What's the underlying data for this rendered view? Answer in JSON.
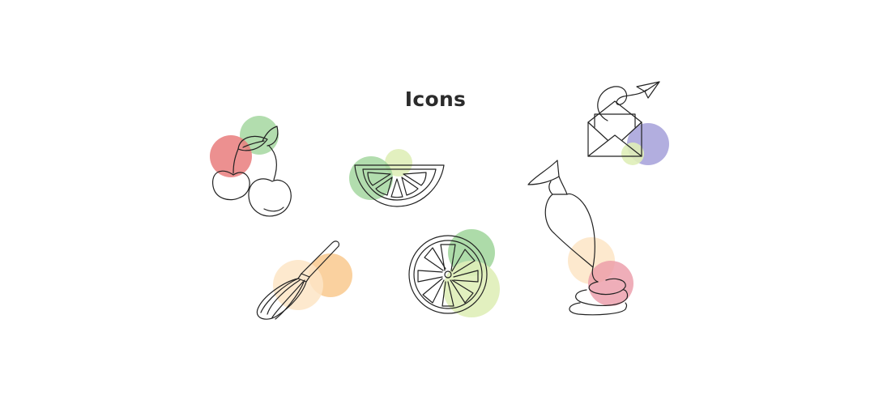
{
  "title": "Icons",
  "colors": {
    "line": "#222222",
    "red": "#e97d7d",
    "green": "#9fd59a",
    "light_green": "#dfeeb8",
    "orange": "#f9c98e",
    "peach": "#fde5c6",
    "purple": "#aaa5dc",
    "pink": "#eb9aa8"
  },
  "icons": [
    {
      "name": "cherries",
      "accents": [
        "red",
        "green"
      ]
    },
    {
      "name": "lime-slice",
      "accents": [
        "green",
        "light_green"
      ]
    },
    {
      "name": "piping-bag",
      "accents": [
        "peach",
        "pink"
      ]
    },
    {
      "name": "envelope-paper-plane",
      "accents": [
        "purple",
        "light_green"
      ]
    },
    {
      "name": "whisk",
      "accents": [
        "peach",
        "orange"
      ]
    },
    {
      "name": "citrus-round",
      "accents": [
        "green",
        "light_green"
      ]
    }
  ]
}
